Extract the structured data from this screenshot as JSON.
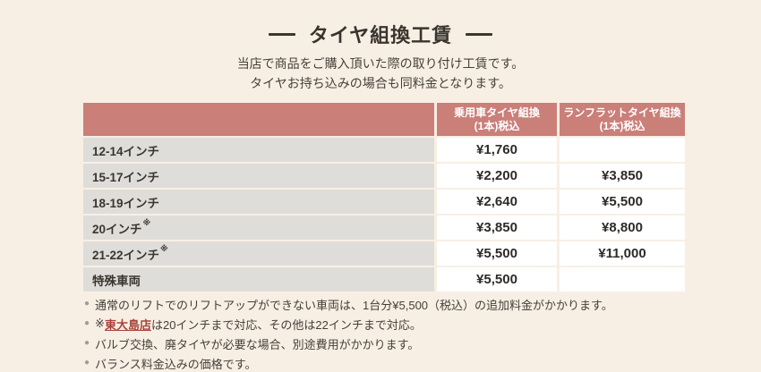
{
  "page": {
    "title": "タイヤ組換工賃",
    "subtitle_line1": "当店で商品をご購入頂いた際の取り付け工賃です。",
    "subtitle_line2": "タイヤお持ち込みの場合も同料金となります。"
  },
  "colors": {
    "page_background": "#f8efe4",
    "table_header_bg": "#ca7f79",
    "row_label_bg": "#dfddd9",
    "price_cell_bg": "#ffffff",
    "link_color": "#a8433c"
  },
  "table": {
    "headers": {
      "passenger_line1": "乗用車タイヤ組換",
      "passenger_line2": "(1本)税込",
      "runflat_line1": "ランフラットタイヤ組換",
      "runflat_line2": "(1本)税込"
    },
    "rows": [
      {
        "label": "12-14インチ",
        "sup": "",
        "passenger": "¥1,760",
        "runflat": ""
      },
      {
        "label": "15-17インチ",
        "sup": "",
        "passenger": "¥2,200",
        "runflat": "¥3,850"
      },
      {
        "label": "18-19インチ",
        "sup": "",
        "passenger": "¥2,640",
        "runflat": "¥5,500"
      },
      {
        "label": "20インチ",
        "sup": "※",
        "passenger": "¥3,850",
        "runflat": "¥8,800"
      },
      {
        "label": "21-22インチ",
        "sup": "※",
        "passenger": "¥5,500",
        "runflat": "¥11,000"
      },
      {
        "label": "特殊車両",
        "sup": "",
        "passenger": "¥5,500",
        "runflat": ""
      }
    ]
  },
  "footnotes": {
    "bullet": "●",
    "item1": {
      "text": "通常のリフトでのリフトアップができない車両は、1台分¥5,500（税込）の追加料金がかかります。"
    },
    "item2": {
      "prefix": "※",
      "link": "東大島店",
      "suffix": "は20インチまで対応、その他は22インチまで対応。"
    },
    "item3": {
      "text": "バルブ交換、廃タイヤが必要な場合、別途費用がかかります。"
    },
    "item4": {
      "text": "バランス料金込みの価格です。"
    }
  }
}
